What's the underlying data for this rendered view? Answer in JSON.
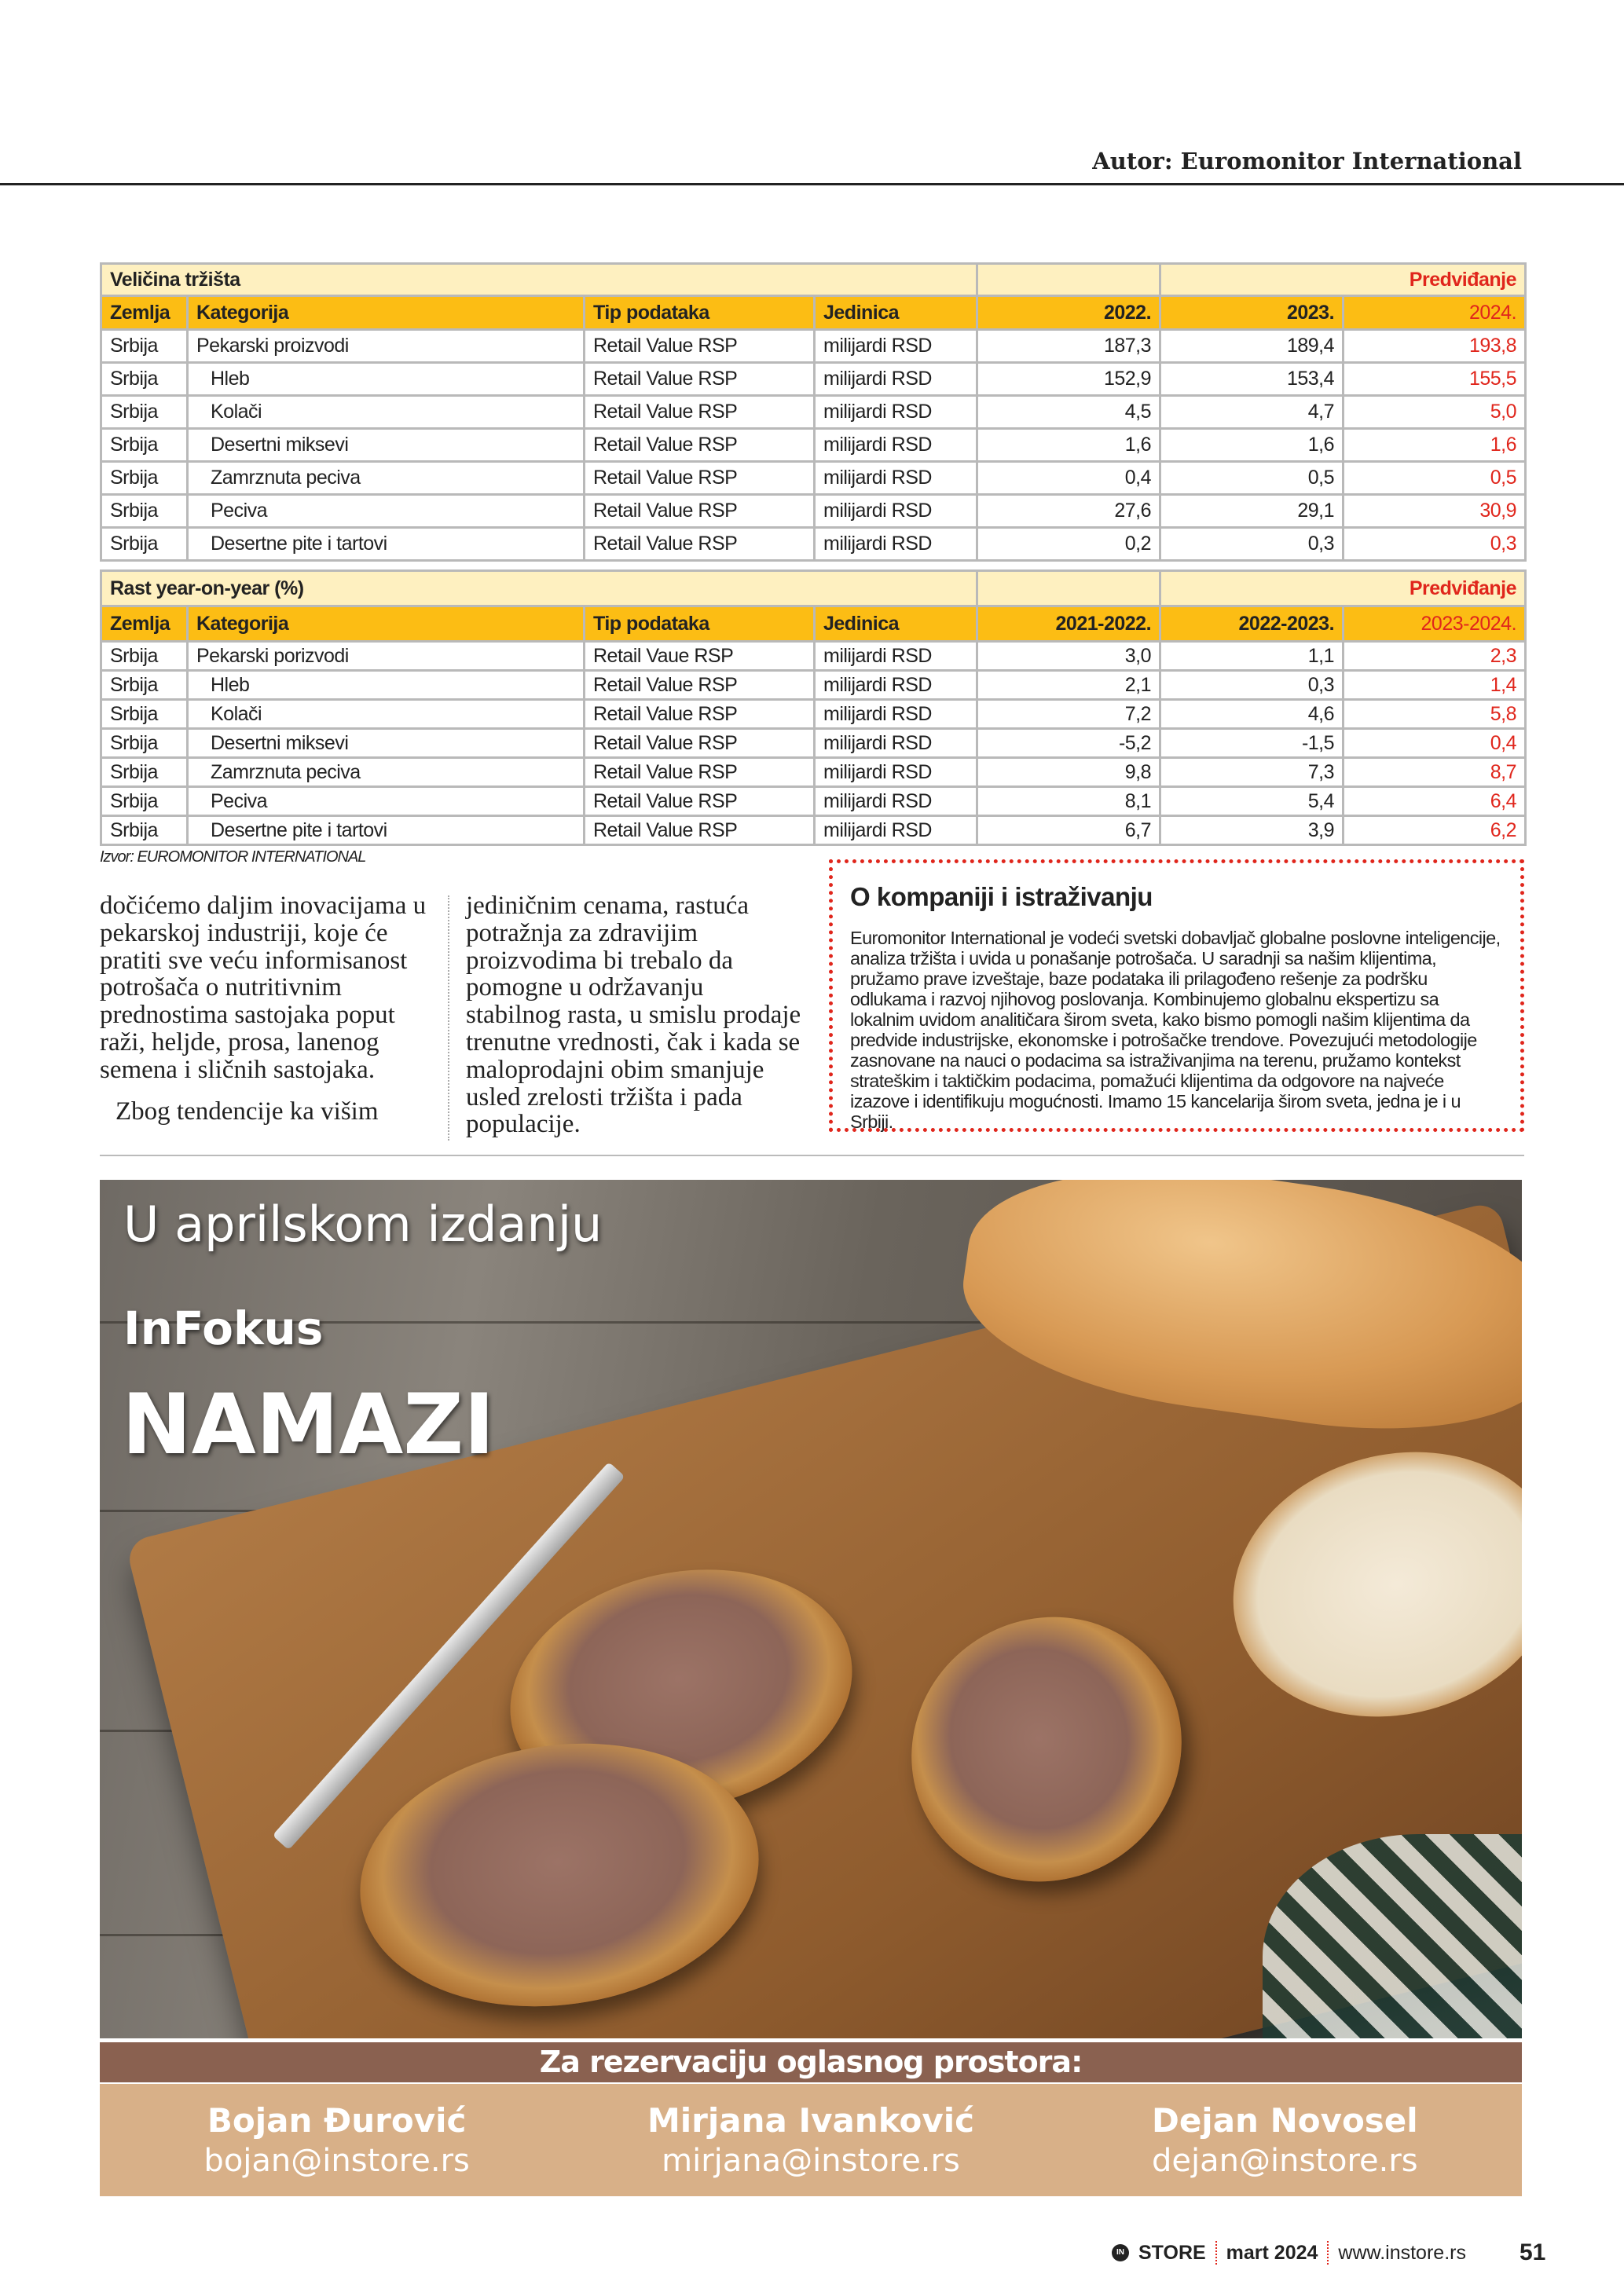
{
  "header": {
    "author": "Autor: Euromonitor International"
  },
  "table1": {
    "title": "Veličina tržišta",
    "forecast_label": "Predviđanje",
    "headers": [
      "Zemlja",
      "Kategorija",
      "Tip podataka",
      "Jedinica",
      "2022.",
      "2023.",
      "2024."
    ],
    "rows": [
      [
        "Srbija",
        "Pekarski proizvodi",
        "Retail Value RSP",
        "milijardi RSD",
        "187,3",
        "189,4",
        "193,8"
      ],
      [
        "Srbija",
        "Hleb",
        "Retail Value RSP",
        "milijardi RSD",
        "152,9",
        "153,4",
        "155,5"
      ],
      [
        "Srbija",
        "Kolači",
        "Retail Value RSP",
        "milijardi RSD",
        "4,5",
        "4,7",
        "5,0"
      ],
      [
        "Srbija",
        "Desertni miksevi",
        "Retail Value RSP",
        "milijardi RSD",
        "1,6",
        "1,6",
        "1,6"
      ],
      [
        "Srbija",
        "Zamrznuta peciva",
        "Retail Value RSP",
        "milijardi RSD",
        "0,4",
        "0,5",
        "0,5"
      ],
      [
        "Srbija",
        "Peciva",
        "Retail Value RSP",
        "milijardi RSD",
        "27,6",
        "29,1",
        "30,9"
      ],
      [
        "Srbija",
        "Desertne pite i tartovi",
        "Retail Value RSP",
        "milijardi RSD",
        "0,2",
        "0,3",
        "0,3"
      ]
    ]
  },
  "table2": {
    "title": "Rast year-on-year (%)",
    "forecast_label": "Predviđanje",
    "headers": [
      "Zemlja",
      "Kategorija",
      "Tip podataka",
      "Jedinica",
      "2021-2022.",
      "2022-2023.",
      "2023-2024."
    ],
    "rows": [
      [
        "Srbija",
        "Pekarski porizvodi",
        "Retail Vaue RSP",
        "milijardi RSD",
        "3,0",
        "1,1",
        "2,3"
      ],
      [
        "Srbija",
        "Hleb",
        "Retail Value RSP",
        "milijardi RSD",
        "2,1",
        "0,3",
        "1,4"
      ],
      [
        "Srbija",
        "Kolači",
        "Retail Value RSP",
        "milijardi RSD",
        "7,2",
        "4,6",
        "5,8"
      ],
      [
        "Srbija",
        "Desertni miksevi",
        "Retail Value RSP",
        "milijardi RSD",
        "-5,2",
        "-1,5",
        "0,4"
      ],
      [
        "Srbija",
        "Zamrznuta peciva",
        "Retail Value RSP",
        "milijardi RSD",
        "9,8",
        "7,3",
        "8,7"
      ],
      [
        "Srbija",
        "Peciva",
        "Retail Value RSP",
        "milijardi RSD",
        "8,1",
        "5,4",
        "6,4"
      ],
      [
        "Srbija",
        "Desertne pite i tartovi",
        "Retail Value RSP",
        "milijardi RSD",
        "6,7",
        "3,9",
        "6,2"
      ]
    ]
  },
  "source": "Izvor: EUROMONITOR INTERNATIONAL",
  "article": {
    "col1_p1": "dočićemo daljim inovacijama u pekarskoj industriji, koje će pratiti sve veću informisanost potrošača o nutritivnim prednostima sastojaka poput raži, heljde, prosa, lanenog semena i sličnih sastojaka.",
    "col1_p2": "Zbog tendencije ka višim",
    "col2": "jediničnim cenama, rastuća potražnja za zdravijim proizvodima bi trebalo da pomogne u održavanju stabilnog rasta, u smislu prodaje trenutne vrednosti, čak i kada se maloprodajni obim smanjuje usled zrelosti tržišta i pada populacije."
  },
  "infobox": {
    "title": "O kompaniji i istraživanju",
    "text": "Euromonitor International je vodeći svetski dobavljač globalne poslovne inteligencije, analiza tržišta i uvida u ponašanje potrošača. U saradnji sa našim klijentima, pružamo prave izveštaje, baze podataka ili prilagođeno rešenje za podršku odlukama i razvoj njihovog poslovanja. Kombinujemo globalnu ekspertizu sa lokalnim uvidom analitičara širom sveta, kako bismo pomogli našim klijentima da predvide industrijske, ekonomske i potrošačke trendove. Povezujući metodologije zasnovane na nauci o podacima sa istraživanjima na terenu, pružamo kontekst strateškim i taktičkim podacima, pomažući klijentima da odgovore na najveće izazove i identifikuju mogućnosti. Imamo 15 kancelarija širom sveta, jedna je i u Srbiji."
  },
  "promo": {
    "line1": "U aprilskom izdanju",
    "line2": "InFokus",
    "line3": "NAMAZI"
  },
  "ad": {
    "title": "Za rezervaciju oglasnog prostora:",
    "contacts": [
      {
        "name": "Bojan Đurović",
        "email": "bojan@instore.rs"
      },
      {
        "name": "Mirjana Ivanković",
        "email": "mirjana@instore.rs"
      },
      {
        "name": "Dejan Novosel",
        "email": "dejan@instore.rs"
      }
    ]
  },
  "footer": {
    "logo_in": "IN",
    "brand": "STORE",
    "issue": "mart 2024",
    "url": "www.instore.rs",
    "page": "51"
  },
  "colors": {
    "header_yellow": "#fcbd14",
    "title_cream": "#fef0c0",
    "forecast_red": "#e0261c",
    "ad_brown": "#8a6150",
    "ad_tan": "#d8b088"
  }
}
